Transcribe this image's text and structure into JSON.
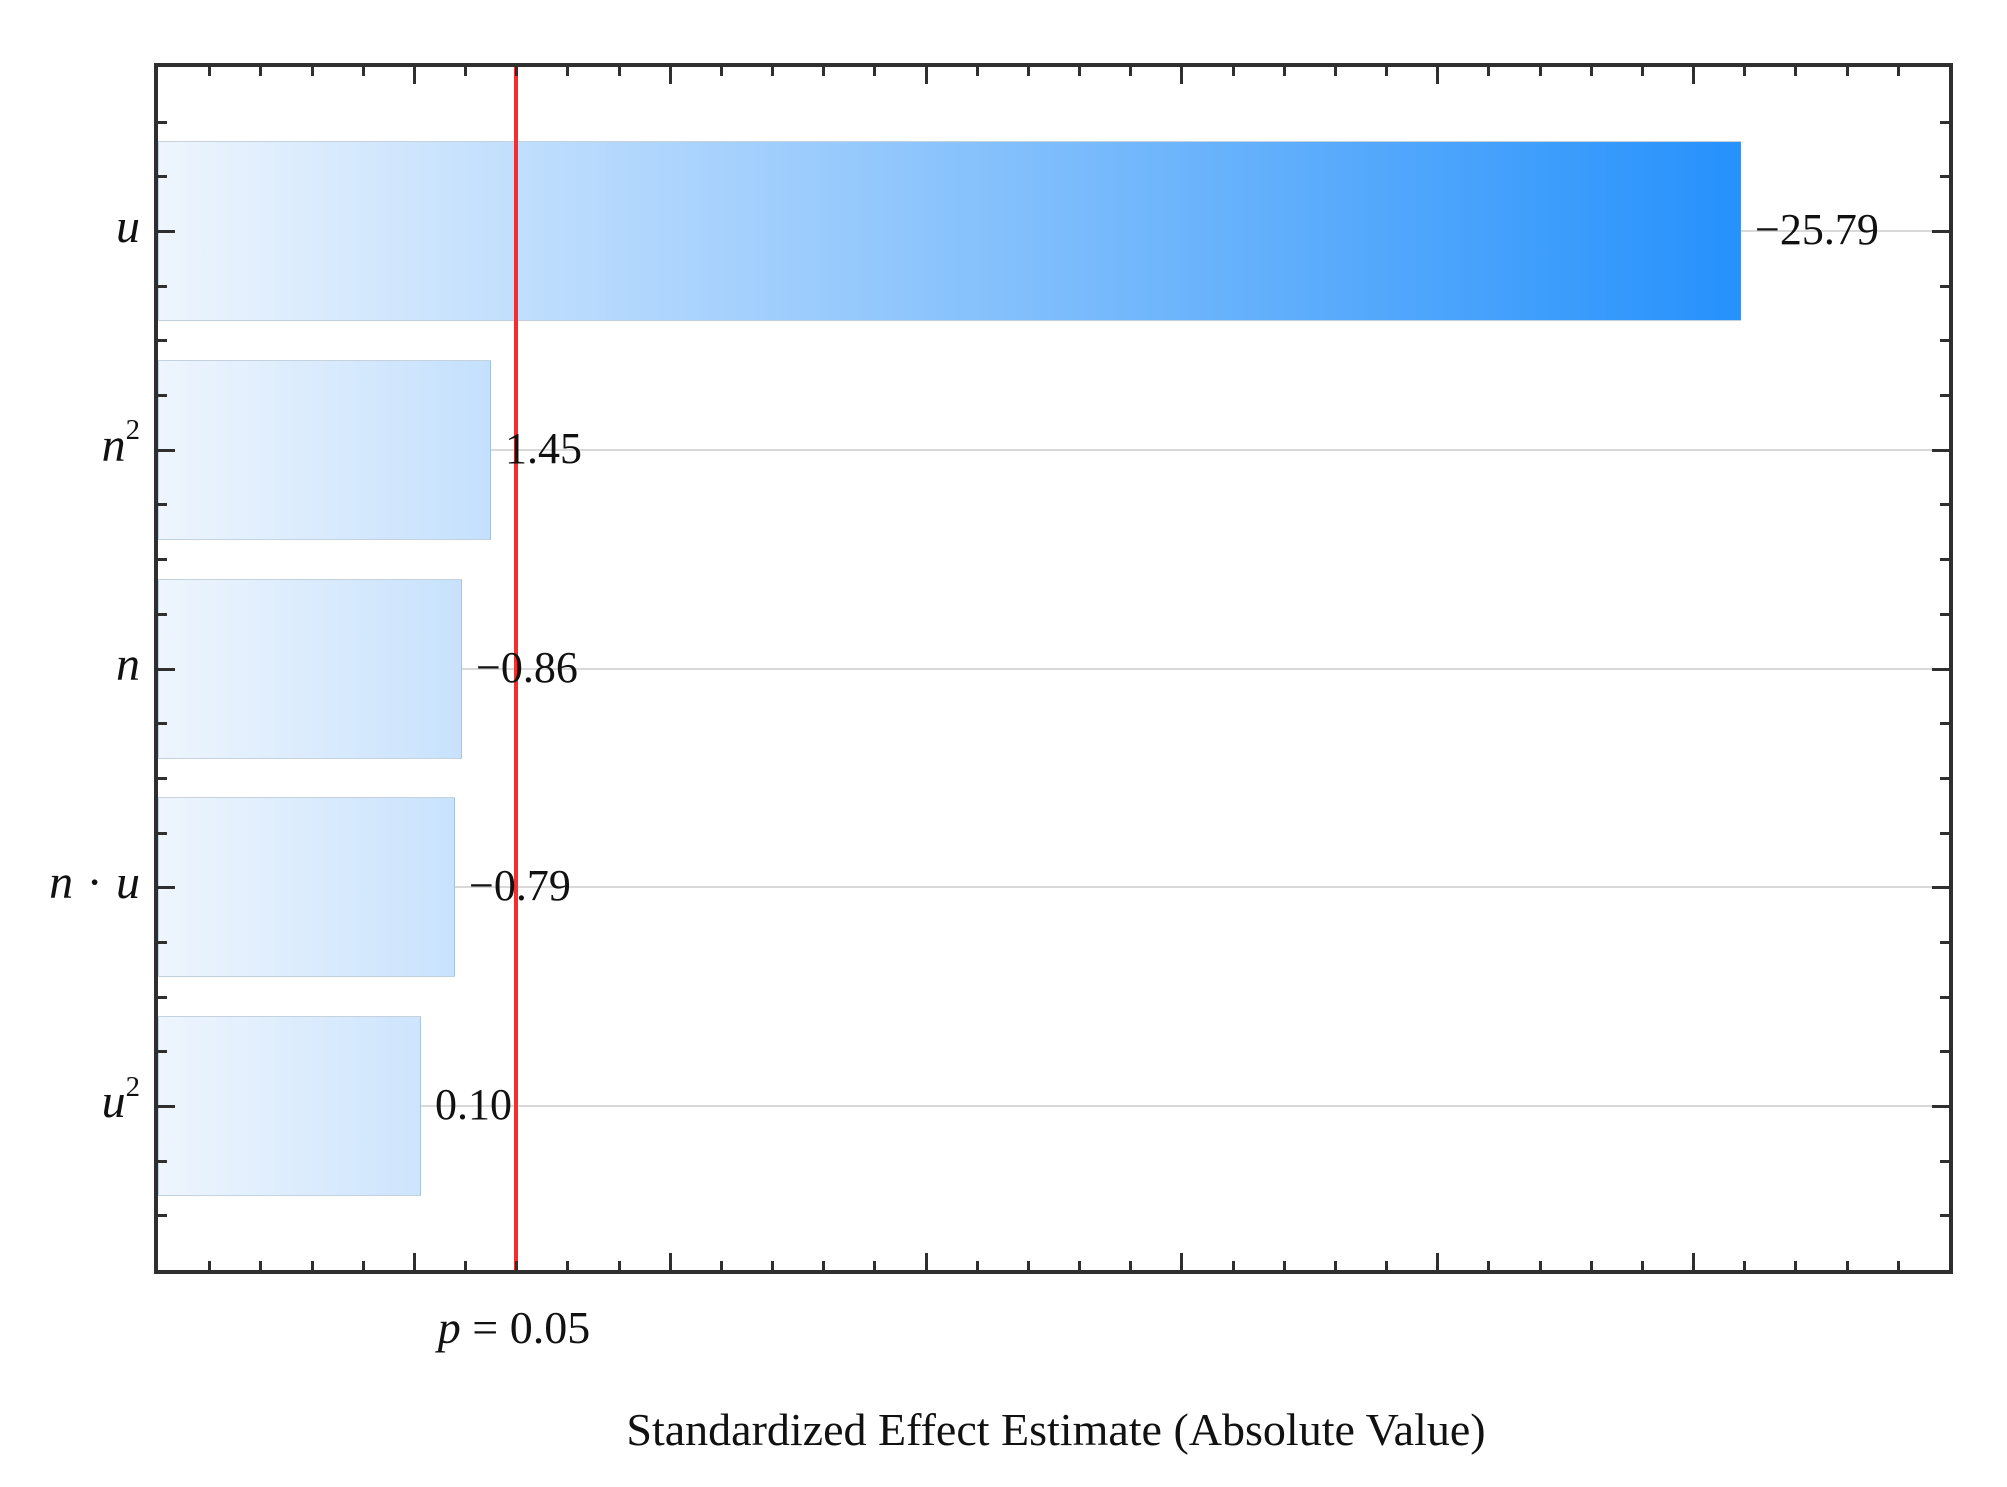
{
  "figure": {
    "x_axis_title": "Standardized Effect Estimate (Absolute Value)",
    "p_line": {
      "var": "p",
      "rest": " = 0.05",
      "full": "p = 0.05"
    }
  },
  "chart_data": {
    "type": "bar",
    "orientation": "horizontal",
    "title": "",
    "xlabel": "Standardized Effect Estimate (Absolute Value)",
    "ylabel": "",
    "categories": [
      "u",
      "n²",
      "n",
      "n · u",
      "u²"
    ],
    "category_parts": [
      {
        "base": "u"
      },
      {
        "base": "n",
        "sup": "2"
      },
      {
        "base": "n"
      },
      {
        "base": "n",
        "mult": "u"
      },
      {
        "base": "u",
        "sup": "2"
      }
    ],
    "values": [
      -25.79,
      1.45,
      -0.86,
      -0.79,
      0.1
    ],
    "value_labels": [
      "−25.79",
      "1.45",
      "−0.86",
      "−0.79",
      "0.10"
    ],
    "significance_line": {
      "label": "p = 0.05",
      "value": 0.05,
      "color": "#f32e2e"
    },
    "x_tick_numbers_shown": false,
    "grid": "horizontal",
    "legend": "none",
    "colors": {
      "bar_gradient_start": "#eef5fd",
      "bar_gradient_end": "#0b84fc",
      "axis": "#2f2f2f",
      "gridline": "#d9d9d9",
      "significance": "#f32e2e",
      "text": "#111111"
    }
  }
}
